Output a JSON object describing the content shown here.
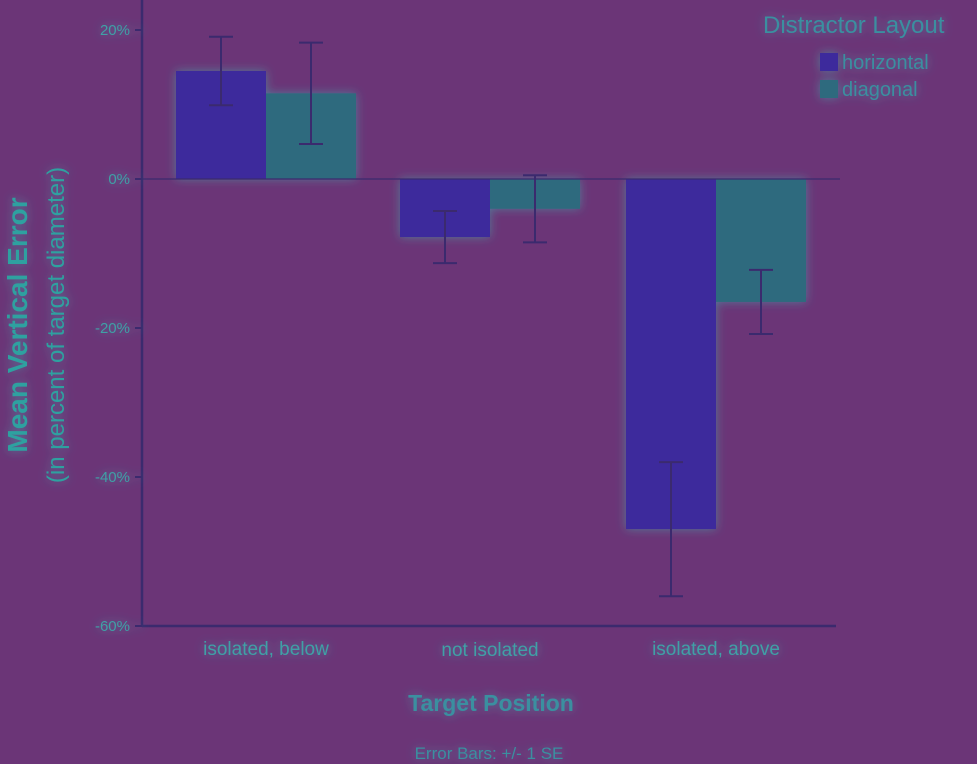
{
  "chart_data": {
    "type": "bar",
    "xlabel": "Target Position",
    "ylabel": "Mean Vertical Error",
    "ylabel_sub": "(in percent of target diameter)",
    "categories": [
      "isolated, below",
      "not isolated",
      "isolated, above"
    ],
    "series": [
      {
        "name": "horizontal",
        "values": [
          14.5,
          -7.8,
          -47.0
        ],
        "se": [
          4.6,
          3.5,
          9.0
        ],
        "color": "#3d2a9c"
      },
      {
        "name": "diagonal",
        "values": [
          11.5,
          -4.0,
          -16.5
        ],
        "se": [
          6.8,
          4.5,
          4.3
        ],
        "color": "#2e6a7e"
      }
    ],
    "ylim": [
      -60,
      20
    ],
    "yticks": [
      20,
      0,
      -20,
      -40,
      -60
    ],
    "ytick_labels": [
      "20%",
      "0%",
      "-20%",
      "-40%",
      "-60%"
    ],
    "legend": {
      "title": "Distractor Layout",
      "placement": "top-right"
    },
    "note": "Error Bars: +/- 1 SE",
    "grid": false,
    "colors": {
      "background": "#6b3577",
      "axis": "#3b2a6e",
      "text": "#3fa0a6"
    }
  }
}
